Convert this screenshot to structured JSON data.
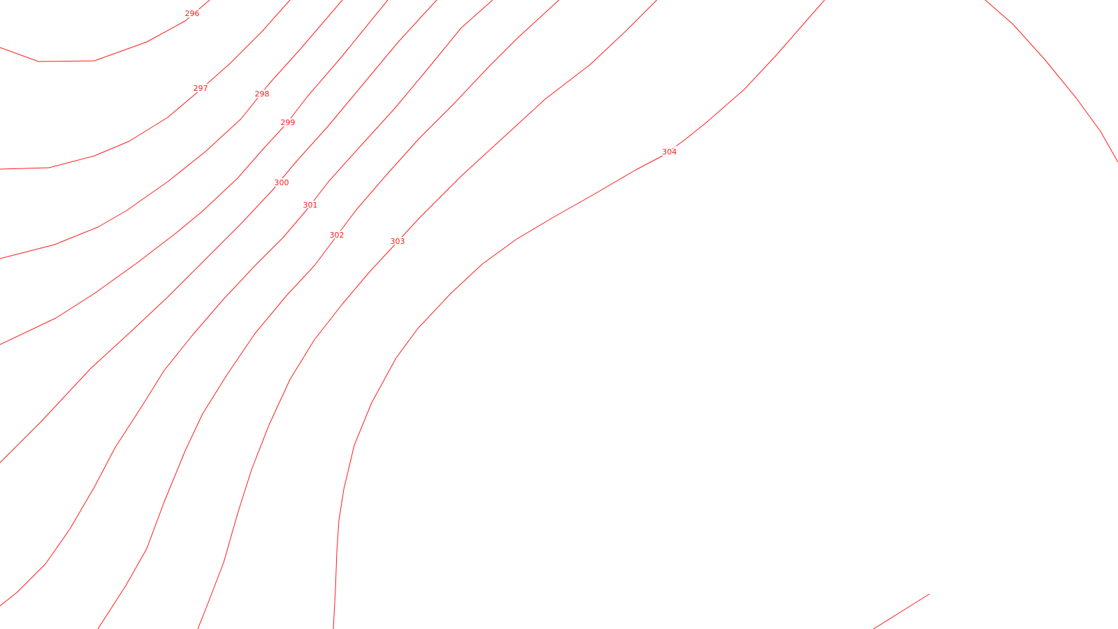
{
  "map": {
    "line_color": "#ff1a1a",
    "label_color": "#ff1a1a",
    "background": "#ffffff",
    "contour_labels": {
      "c296": "296",
      "c297": "297",
      "c298": "298",
      "c299": "299",
      "c300": "300",
      "c301": "301",
      "c302": "302",
      "c303": "303",
      "c304": "304"
    }
  }
}
